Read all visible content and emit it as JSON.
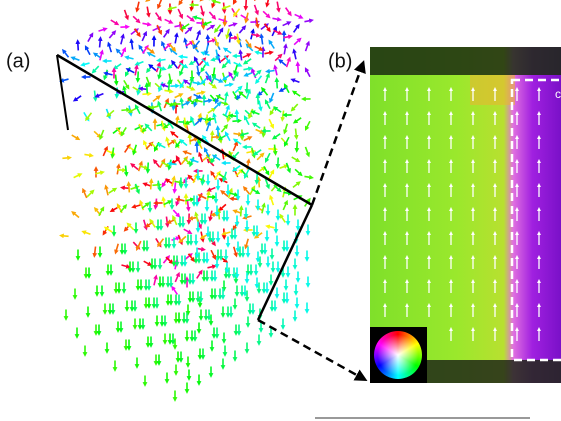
{
  "panels": [
    {
      "label": "(a)"
    },
    {
      "label": "(b)",
      "inset_label": "c"
    }
  ]
}
